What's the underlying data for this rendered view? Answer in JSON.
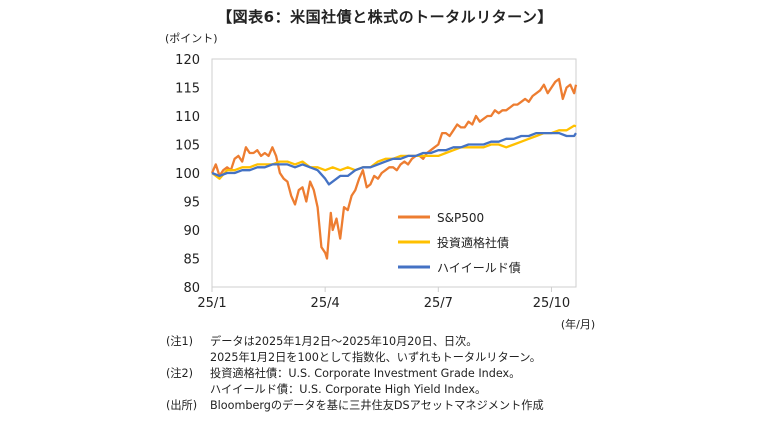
{
  "title": "【図表6：米国社債と株式のトータルリターン】",
  "chart_data": {
    "type": "line",
    "ylabel": "(ポイント)",
    "xunit": "(年/月)",
    "ylim": [
      80,
      120
    ],
    "yticks": [
      80,
      85,
      90,
      95,
      100,
      105,
      110,
      115,
      120
    ],
    "xticks": [
      {
        "label": "25/1",
        "month": 0
      },
      {
        "label": "25/4",
        "month": 3
      },
      {
        "label": "25/7",
        "month": 6
      },
      {
        "label": "25/10",
        "month": 9
      }
    ],
    "xlim": [
      0,
      9.65
    ],
    "legend_position": "center-right",
    "series": [
      {
        "name": "S&P500",
        "color": "#ED7D31",
        "x": [
          0,
          0.1,
          0.2,
          0.3,
          0.4,
          0.5,
          0.6,
          0.7,
          0.8,
          0.9,
          1.0,
          1.1,
          1.2,
          1.3,
          1.4,
          1.5,
          1.6,
          1.7,
          1.8,
          1.9,
          2.0,
          2.1,
          2.2,
          2.3,
          2.4,
          2.5,
          2.6,
          2.7,
          2.8,
          2.9,
          3.0,
          3.05,
          3.1,
          3.15,
          3.2,
          3.3,
          3.4,
          3.5,
          3.6,
          3.7,
          3.8,
          3.9,
          4.0,
          4.1,
          4.2,
          4.3,
          4.4,
          4.5,
          4.6,
          4.7,
          4.8,
          4.9,
          5.0,
          5.1,
          5.2,
          5.3,
          5.4,
          5.5,
          5.6,
          5.7,
          5.8,
          5.9,
          6.0,
          6.1,
          6.2,
          6.3,
          6.4,
          6.5,
          6.6,
          6.7,
          6.8,
          6.9,
          7.0,
          7.1,
          7.2,
          7.3,
          7.4,
          7.5,
          7.6,
          7.7,
          7.8,
          7.9,
          8.0,
          8.1,
          8.2,
          8.3,
          8.4,
          8.5,
          8.6,
          8.7,
          8.8,
          8.9,
          9.0,
          9.1,
          9.2,
          9.3,
          9.4,
          9.5,
          9.6,
          9.65
        ],
        "values": [
          100,
          101.5,
          99.5,
          100.5,
          101,
          100.5,
          102.5,
          103,
          102,
          104.5,
          103.5,
          103.5,
          104,
          103,
          103.5,
          103,
          104.5,
          103,
          100,
          99,
          98.5,
          96,
          94.5,
          97,
          97.5,
          95,
          98.5,
          97,
          94,
          87,
          86,
          85,
          89,
          93,
          90,
          92,
          88.5,
          94,
          93.5,
          96,
          97,
          99,
          100.5,
          97.5,
          98,
          99.5,
          99,
          100,
          100.5,
          101,
          101,
          100.5,
          101.5,
          102,
          101.5,
          102.5,
          103,
          103,
          102.5,
          103.5,
          104,
          104.5,
          105,
          107,
          107,
          106.5,
          107.5,
          108.5,
          108,
          108,
          109,
          108.5,
          110,
          109,
          109.5,
          110,
          110,
          111,
          110.5,
          111,
          111,
          111.5,
          112,
          112,
          112.5,
          113,
          112.5,
          113.5,
          114,
          114.5,
          115.5,
          114,
          115,
          116,
          116.5,
          113,
          115,
          115.5,
          114,
          115.5
        ]
      },
      {
        "name": "投資適格社債",
        "color": "#FFC000",
        "x": [
          0,
          0.2,
          0.4,
          0.6,
          0.8,
          1.0,
          1.2,
          1.4,
          1.6,
          1.8,
          2.0,
          2.2,
          2.4,
          2.6,
          2.8,
          3.0,
          3.2,
          3.4,
          3.6,
          3.8,
          4.0,
          4.2,
          4.4,
          4.6,
          4.8,
          5.0,
          5.2,
          5.4,
          5.6,
          5.8,
          6.0,
          6.2,
          6.4,
          6.6,
          6.8,
          7.0,
          7.2,
          7.4,
          7.6,
          7.8,
          8.0,
          8.2,
          8.4,
          8.6,
          8.8,
          9.0,
          9.2,
          9.4,
          9.6,
          9.65
        ],
        "values": [
          100,
          99,
          100.5,
          100.5,
          101,
          101,
          101.5,
          101.5,
          101.5,
          102,
          102,
          101.5,
          102,
          101,
          101,
          100.5,
          101,
          100.5,
          101,
          100.5,
          101,
          101,
          102,
          102.5,
          102.5,
          103,
          103,
          103,
          103,
          103,
          103,
          103.5,
          104,
          104.5,
          104.5,
          104.5,
          104.5,
          105,
          105,
          104.5,
          105,
          105.5,
          106,
          106.5,
          107,
          107,
          107.5,
          107.5,
          108.3,
          108.2
        ]
      },
      {
        "name": "ハイイールド債",
        "color": "#4472C4",
        "x": [
          0,
          0.2,
          0.4,
          0.6,
          0.8,
          1.0,
          1.2,
          1.4,
          1.6,
          1.8,
          2.0,
          2.2,
          2.4,
          2.6,
          2.8,
          3.0,
          3.1,
          3.2,
          3.4,
          3.6,
          3.8,
          4.0,
          4.2,
          4.4,
          4.6,
          4.8,
          5.0,
          5.2,
          5.4,
          5.6,
          5.8,
          6.0,
          6.2,
          6.4,
          6.6,
          6.8,
          7.0,
          7.2,
          7.4,
          7.6,
          7.8,
          8.0,
          8.2,
          8.4,
          8.6,
          8.8,
          9.0,
          9.2,
          9.4,
          9.6,
          9.65
        ],
        "values": [
          100,
          99.5,
          100,
          100,
          100.5,
          100.5,
          101,
          101,
          101.5,
          101.5,
          101.5,
          101,
          101.5,
          101,
          100.5,
          99,
          98,
          98.5,
          99.5,
          99.5,
          100.5,
          101,
          101,
          101.5,
          102,
          102.5,
          102.5,
          103,
          103,
          103.5,
          103.5,
          104,
          104,
          104.5,
          104.5,
          105,
          105,
          105,
          105.5,
          105.5,
          106,
          106,
          106.5,
          106.5,
          107,
          107,
          107,
          107,
          106.5,
          106.5,
          107
        ]
      }
    ]
  },
  "notes": [
    {
      "label": "(注1)",
      "lines": [
        "データは2025年1月2日～2025年10月20日、日次。",
        "2025年1月2日を100として指数化、いずれもトータルリターン。"
      ]
    },
    {
      "label": "(注2)",
      "lines": [
        "投資適格社債：U.S. Corporate Investment Grade Index。",
        "ハイイールド債：U.S. Corporate High Yield Index。"
      ]
    },
    {
      "label": "(出所)",
      "lines": [
        "Bloombergのデータを基に三井住友DSアセットマネジメント作成"
      ]
    }
  ]
}
